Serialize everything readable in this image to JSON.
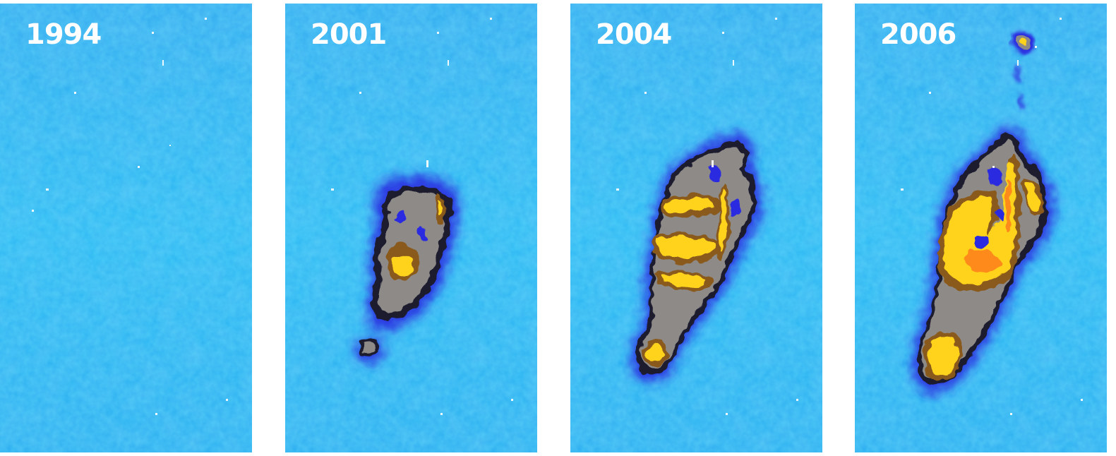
{
  "colors": {
    "background": "#29bff0",
    "background_dark": "#1f8fe6",
    "halo": "#2a2ae0",
    "outline": "#1a1a2e",
    "gray": "#8e8a88",
    "brown": "#8a5a1e",
    "yellow": "#ffd21a",
    "orange": "#ff8a1a"
  },
  "panels": [
    {
      "label": "1994"
    },
    {
      "label": "2001"
    },
    {
      "label": "2004"
    },
    {
      "label": "2006"
    }
  ]
}
